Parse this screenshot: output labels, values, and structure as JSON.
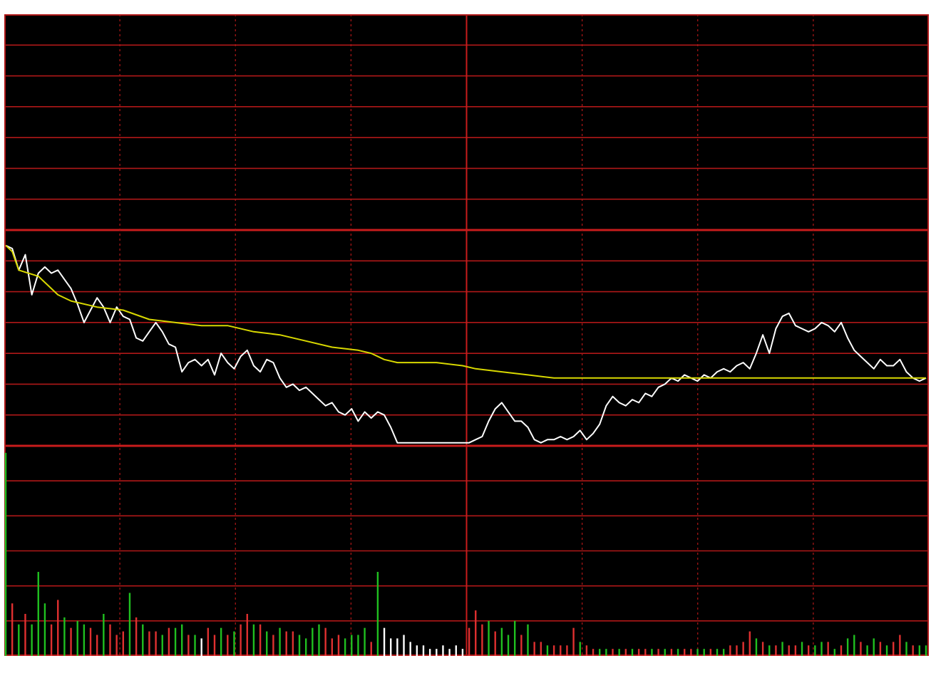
{
  "chart_data": {
    "type": "line",
    "title": "",
    "xlabel": "",
    "ylabel": "",
    "grid": true,
    "legend": "none",
    "colors": {
      "background": "#000000",
      "grid": "#b01818",
      "grid_strong": "#c81c1c",
      "price": "#ffffff",
      "average": "#d8d800",
      "volume_up": "#e03030",
      "volume_down": "#20c020",
      "volume_flat": "#ffffff"
    },
    "price_panel": {
      "ylim": [
        -7,
        7
      ],
      "reference": 0,
      "y_lines": [
        7,
        6,
        5,
        4,
        3,
        2,
        1,
        0,
        -1,
        -2,
        -3,
        -4,
        -5,
        -6,
        -7
      ],
      "strong_lines": [
        7,
        0,
        -7
      ],
      "x_divisions": 8,
      "center_division": 4
    },
    "volume_panel": {
      "ylim": [
        0,
        6
      ],
      "y_lines": [
        6,
        5,
        4,
        3,
        2,
        1,
        0
      ]
    },
    "series": [
      {
        "role": "price",
        "points": [
          [
            0,
            -0.5
          ],
          [
            1,
            -0.6
          ],
          [
            2,
            -1.3
          ],
          [
            3,
            -0.8
          ],
          [
            4,
            -2.1
          ],
          [
            5,
            -1.4
          ],
          [
            6,
            -1.2
          ],
          [
            7,
            -1.4
          ],
          [
            8,
            -1.3
          ],
          [
            9,
            -1.6
          ],
          [
            10,
            -1.9
          ],
          [
            11,
            -2.4
          ],
          [
            12,
            -3.0
          ],
          [
            13,
            -2.6
          ],
          [
            14,
            -2.2
          ],
          [
            15,
            -2.5
          ],
          [
            16,
            -3.0
          ],
          [
            17,
            -2.5
          ],
          [
            18,
            -2.8
          ],
          [
            19,
            -2.9
          ],
          [
            20,
            -3.5
          ],
          [
            21,
            -3.6
          ],
          [
            22,
            -3.3
          ],
          [
            23,
            -3.0
          ],
          [
            24,
            -3.3
          ],
          [
            25,
            -3.7
          ],
          [
            26,
            -3.8
          ],
          [
            27,
            -4.6
          ],
          [
            28,
            -4.3
          ],
          [
            29,
            -4.2
          ],
          [
            30,
            -4.4
          ],
          [
            31,
            -4.2
          ],
          [
            32,
            -4.7
          ],
          [
            33,
            -4.0
          ],
          [
            34,
            -4.3
          ],
          [
            35,
            -4.5
          ],
          [
            36,
            -4.1
          ],
          [
            37,
            -3.9
          ],
          [
            38,
            -4.4
          ],
          [
            39,
            -4.6
          ],
          [
            40,
            -4.2
          ],
          [
            41,
            -4.3
          ],
          [
            42,
            -4.8
          ],
          [
            43,
            -5.1
          ],
          [
            44,
            -5.0
          ],
          [
            45,
            -5.2
          ],
          [
            46,
            -5.1
          ],
          [
            47,
            -5.3
          ],
          [
            48,
            -5.5
          ],
          [
            49,
            -5.7
          ],
          [
            50,
            -5.6
          ],
          [
            51,
            -5.9
          ],
          [
            52,
            -6.0
          ],
          [
            53,
            -5.8
          ],
          [
            54,
            -6.2
          ],
          [
            55,
            -5.9
          ],
          [
            56,
            -6.1
          ],
          [
            57,
            -5.9
          ],
          [
            58,
            -6.0
          ],
          [
            59,
            -6.4
          ],
          [
            60,
            -6.9
          ],
          [
            61,
            -6.9
          ],
          [
            62,
            -6.9
          ],
          [
            63,
            -6.9
          ],
          [
            64,
            -6.9
          ],
          [
            65,
            -6.9
          ],
          [
            66,
            -6.9
          ],
          [
            67,
            -6.9
          ],
          [
            68,
            -6.9
          ],
          [
            69,
            -6.9
          ],
          [
            70,
            -6.9
          ],
          [
            71,
            -6.9
          ],
          [
            72,
            -6.8
          ],
          [
            73,
            -6.7
          ],
          [
            74,
            -6.2
          ],
          [
            75,
            -5.8
          ],
          [
            76,
            -5.6
          ],
          [
            77,
            -5.9
          ],
          [
            78,
            -6.2
          ],
          [
            79,
            -6.2
          ],
          [
            80,
            -6.4
          ],
          [
            81,
            -6.8
          ],
          [
            82,
            -6.9
          ],
          [
            83,
            -6.8
          ],
          [
            84,
            -6.8
          ],
          [
            85,
            -6.7
          ],
          [
            86,
            -6.8
          ],
          [
            87,
            -6.7
          ],
          [
            88,
            -6.5
          ],
          [
            89,
            -6.8
          ],
          [
            90,
            -6.6
          ],
          [
            91,
            -6.3
          ],
          [
            92,
            -5.7
          ],
          [
            93,
            -5.4
          ],
          [
            94,
            -5.6
          ],
          [
            95,
            -5.7
          ],
          [
            96,
            -5.5
          ],
          [
            97,
            -5.6
          ],
          [
            98,
            -5.3
          ],
          [
            99,
            -5.4
          ],
          [
            100,
            -5.1
          ],
          [
            101,
            -5.0
          ],
          [
            102,
            -4.8
          ],
          [
            103,
            -4.9
          ],
          [
            104,
            -4.7
          ],
          [
            105,
            -4.8
          ],
          [
            106,
            -4.9
          ],
          [
            107,
            -4.7
          ],
          [
            108,
            -4.8
          ],
          [
            109,
            -4.6
          ],
          [
            110,
            -4.5
          ],
          [
            111,
            -4.6
          ],
          [
            112,
            -4.4
          ],
          [
            113,
            -4.3
          ],
          [
            114,
            -4.5
          ],
          [
            115,
            -4.0
          ],
          [
            116,
            -3.4
          ],
          [
            117,
            -4.0
          ],
          [
            118,
            -3.2
          ],
          [
            119,
            -2.8
          ],
          [
            120,
            -2.7
          ],
          [
            121,
            -3.1
          ],
          [
            122,
            -3.2
          ],
          [
            123,
            -3.3
          ],
          [
            124,
            -3.2
          ],
          [
            125,
            -3.0
          ],
          [
            126,
            -3.1
          ],
          [
            127,
            -3.3
          ],
          [
            128,
            -3.0
          ],
          [
            129,
            -3.5
          ],
          [
            130,
            -3.9
          ],
          [
            131,
            -4.1
          ],
          [
            132,
            -4.3
          ],
          [
            133,
            -4.5
          ],
          [
            134,
            -4.2
          ],
          [
            135,
            -4.4
          ],
          [
            136,
            -4.4
          ],
          [
            137,
            -4.2
          ],
          [
            138,
            -4.6
          ],
          [
            139,
            -4.8
          ],
          [
            140,
            -4.9
          ],
          [
            141,
            -4.8
          ]
        ]
      },
      {
        "role": "average",
        "points": [
          [
            0,
            -0.5
          ],
          [
            1,
            -0.7
          ],
          [
            2,
            -1.3
          ],
          [
            5,
            -1.5
          ],
          [
            8,
            -2.1
          ],
          [
            10,
            -2.3
          ],
          [
            14,
            -2.5
          ],
          [
            18,
            -2.6
          ],
          [
            22,
            -2.9
          ],
          [
            26,
            -3.0
          ],
          [
            30,
            -3.1
          ],
          [
            34,
            -3.1
          ],
          [
            38,
            -3.3
          ],
          [
            42,
            -3.4
          ],
          [
            46,
            -3.6
          ],
          [
            50,
            -3.8
          ],
          [
            54,
            -3.9
          ],
          [
            56,
            -4.0
          ],
          [
            58,
            -4.2
          ],
          [
            60,
            -4.3
          ],
          [
            62,
            -4.3
          ],
          [
            66,
            -4.3
          ],
          [
            70,
            -4.4
          ],
          [
            72,
            -4.5
          ],
          [
            76,
            -4.6
          ],
          [
            80,
            -4.7
          ],
          [
            84,
            -4.8
          ],
          [
            88,
            -4.8
          ],
          [
            92,
            -4.8
          ],
          [
            96,
            -4.8
          ],
          [
            100,
            -4.8
          ],
          [
            110,
            -4.8
          ],
          [
            120,
            -4.8
          ],
          [
            130,
            -4.8
          ],
          [
            141,
            -4.8
          ]
        ]
      }
    ],
    "volume": {
      "values": [
        5.8,
        1.5,
        0.9,
        1.2,
        0.9,
        2.4,
        1.5,
        0.9,
        1.6,
        1.1,
        0.8,
        1.0,
        0.9,
        0.8,
        0.6,
        1.2,
        0.9,
        0.6,
        0.7,
        1.8,
        1.1,
        0.9,
        0.7,
        0.7,
        0.6,
        0.8,
        0.8,
        0.9,
        0.6,
        0.6,
        0.5,
        0.8,
        0.6,
        0.8,
        0.6,
        0.7,
        0.9,
        1.2,
        0.9,
        0.9,
        0.7,
        0.6,
        0.8,
        0.7,
        0.7,
        0.6,
        0.5,
        0.8,
        0.9,
        0.8,
        0.5,
        0.6,
        0.5,
        0.6,
        0.6,
        0.8,
        0.4,
        2.4,
        0.8,
        0.5,
        0.5,
        0.6,
        0.4,
        0.3,
        0.3,
        0.2,
        0.2,
        0.3,
        0.2,
        0.3,
        0.2,
        0.8,
        1.3,
        0.9,
        1.0,
        0.7,
        0.8,
        0.6,
        1.0,
        0.6,
        0.9,
        0.4,
        0.4,
        0.3,
        0.3,
        0.3,
        0.3,
        0.8,
        0.4,
        0.3,
        0.2,
        0.2,
        0.2,
        0.2,
        0.2,
        0.2,
        0.2,
        0.2,
        0.2,
        0.2,
        0.2,
        0.2,
        0.2,
        0.2,
        0.2,
        0.2,
        0.2,
        0.2,
        0.2,
        0.2,
        0.2,
        0.3,
        0.3,
        0.4,
        0.7,
        0.5,
        0.4,
        0.3,
        0.3,
        0.4,
        0.3,
        0.3,
        0.4,
        0.3,
        0.3,
        0.4,
        0.4,
        0.2,
        0.3,
        0.5,
        0.6,
        0.4,
        0.3,
        0.5,
        0.4,
        0.3,
        0.4,
        0.6,
        0.4,
        0.3,
        0.3,
        0.3
      ],
      "directions": [
        "down",
        "up",
        "down",
        "up",
        "down",
        "down",
        "down",
        "up",
        "up",
        "down",
        "up",
        "down",
        "down",
        "up",
        "up",
        "down",
        "up",
        "up",
        "up",
        "down",
        "up",
        "down",
        "up",
        "up",
        "down",
        "up",
        "down",
        "down",
        "up",
        "down",
        "flat",
        "up",
        "up",
        "down",
        "up",
        "down",
        "up",
        "up",
        "down",
        "up",
        "down",
        "up",
        "down",
        "up",
        "up",
        "down",
        "down",
        "down",
        "down",
        "up",
        "up",
        "up",
        "down",
        "down",
        "down",
        "down",
        "up",
        "down",
        "flat",
        "flat",
        "flat",
        "flat",
        "flat",
        "flat",
        "flat",
        "flat",
        "flat",
        "flat",
        "flat",
        "flat",
        "flat",
        "up",
        "up",
        "up",
        "down",
        "up",
        "down",
        "down",
        "down",
        "up",
        "down",
        "up",
        "up",
        "down",
        "up",
        "up",
        "up",
        "up",
        "down",
        "up",
        "up",
        "down",
        "down",
        "up",
        "down",
        "up",
        "down",
        "up",
        "up",
        "down",
        "up",
        "down",
        "up",
        "down",
        "up",
        "up",
        "down",
        "down",
        "up",
        "down",
        "down",
        "up",
        "up",
        "up",
        "up",
        "down",
        "up",
        "down",
        "up",
        "down",
        "up",
        "up",
        "down",
        "up",
        "down",
        "down",
        "up",
        "down",
        "up",
        "down",
        "down",
        "up",
        "down",
        "down",
        "up",
        "down",
        "up",
        "up",
        "down",
        "up",
        "down",
        "down"
      ]
    }
  }
}
